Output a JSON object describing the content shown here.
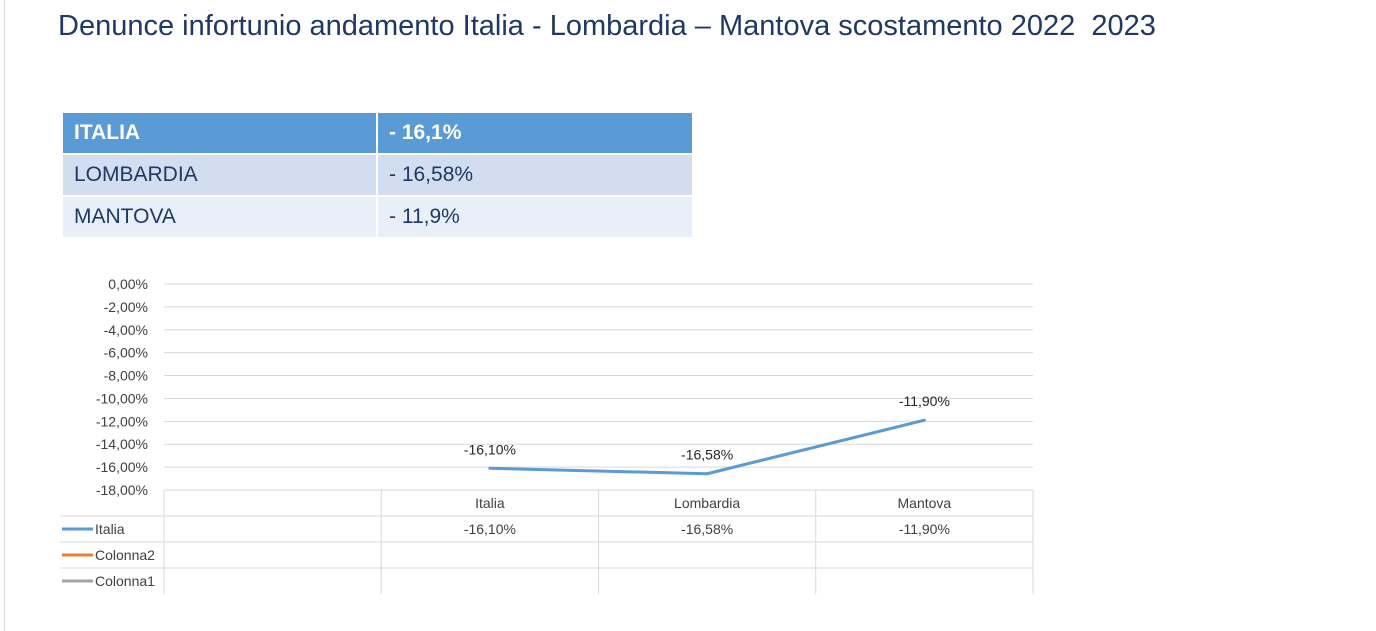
{
  "title": "Denunce infortunio andamento Italia - Lombardia – Mantova scostamento 2022  2023",
  "summary_table": {
    "rows": [
      {
        "region": "ITALIA",
        "value": "- 16,1%"
      },
      {
        "region": "LOMBARDIA",
        "value": "- 16,58%"
      },
      {
        "region": "MANTOVA",
        "value": "- 11,9%"
      }
    ]
  },
  "chart_data": {
    "type": "line",
    "categories": [
      "Italia",
      "Lombardia",
      "Mantova"
    ],
    "series": [
      {
        "name": "Italia",
        "values": [
          -16.1,
          -16.58,
          -11.9
        ],
        "labels": [
          "-16,10%",
          "-16,58%",
          "-11,90%"
        ],
        "color": "#5b9bd5"
      },
      {
        "name": "Colonna2",
        "values": [
          null,
          null,
          null
        ],
        "labels": [
          "",
          "",
          ""
        ],
        "color": "#ed7d31"
      },
      {
        "name": "Colonna1",
        "values": [
          null,
          null,
          null
        ],
        "labels": [
          "",
          "",
          ""
        ],
        "color": "#a5a5a5"
      }
    ],
    "ylim": [
      -18,
      0
    ],
    "y_ticks": [
      "0,00%",
      "-2,00%",
      "-4,00%",
      "-6,00%",
      "-8,00%",
      "-10,00%",
      "-12,00%",
      "-14,00%",
      "-16,00%",
      "-18,00%"
    ],
    "y_tick_values": [
      0,
      -2,
      -4,
      -6,
      -8,
      -10,
      -12,
      -14,
      -16,
      -18
    ],
    "grid": true,
    "data_table": true,
    "title": "",
    "xlabel": "",
    "ylabel": ""
  }
}
